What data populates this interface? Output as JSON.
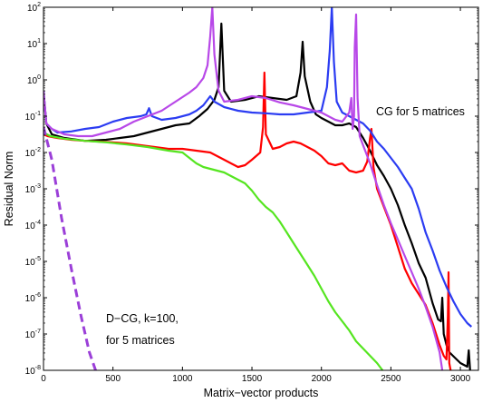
{
  "chart_data": {
    "type": "line",
    "xlabel": "Matrix−vector products",
    "ylabel": "Residual Norm",
    "xlim": [
      0,
      3130
    ],
    "ylim_log10": [
      -8,
      2
    ],
    "log_y": true,
    "grid": false,
    "x_ticks": [
      {
        "value": 0,
        "label": "0"
      },
      {
        "value": 500,
        "label": "500"
      },
      {
        "value": 1000,
        "label": "1000"
      },
      {
        "value": 1500,
        "label": "1500"
      },
      {
        "value": 2000,
        "label": "2000"
      },
      {
        "value": 2500,
        "label": "2500"
      },
      {
        "value": 3000,
        "label": "3000"
      }
    ],
    "y_ticks": [
      {
        "exp": 2,
        "base": "10",
        "sup": "2"
      },
      {
        "exp": 1,
        "base": "10",
        "sup": "1"
      },
      {
        "exp": 0,
        "base": "10",
        "sup": "0"
      },
      {
        "exp": -1,
        "base": "10",
        "sup": "-1"
      },
      {
        "exp": -2,
        "base": "10",
        "sup": "-2"
      },
      {
        "exp": -3,
        "base": "10",
        "sup": "-3"
      },
      {
        "exp": -4,
        "base": "10",
        "sup": "-4"
      },
      {
        "exp": -5,
        "base": "10",
        "sup": "-5"
      },
      {
        "exp": -6,
        "base": "10",
        "sup": "-6"
      },
      {
        "exp": -7,
        "base": "10",
        "sup": "-7"
      },
      {
        "exp": -8,
        "base": "10",
        "sup": "-8"
      }
    ],
    "annotations": [
      {
        "id": "cg",
        "text": "CG for 5 matrices"
      },
      {
        "id": "dcg1",
        "text": "D−CG, k=100,"
      },
      {
        "id": "dcg2",
        "text": "for 5 matrices"
      }
    ],
    "series": [
      {
        "color": "#000000",
        "dashed": false,
        "points": [
          [
            0,
            -0.3
          ],
          [
            20,
            -1.2
          ],
          [
            60,
            -1.5
          ],
          [
            150,
            -1.6
          ],
          [
            300,
            -1.68
          ],
          [
            450,
            -1.65
          ],
          [
            550,
            -1.6
          ],
          [
            650,
            -1.55
          ],
          [
            750,
            -1.45
          ],
          [
            850,
            -1.35
          ],
          [
            950,
            -1.25
          ],
          [
            1050,
            -1.2
          ],
          [
            1120,
            -1.0
          ],
          [
            1180,
            -0.8
          ],
          [
            1230,
            -0.55
          ],
          [
            1260,
            -0.2
          ],
          [
            1280,
            1.55
          ],
          [
            1300,
            -0.3
          ],
          [
            1350,
            -0.6
          ],
          [
            1450,
            -0.55
          ],
          [
            1550,
            -0.45
          ],
          [
            1650,
            -0.5
          ],
          [
            1750,
            -0.55
          ],
          [
            1820,
            -0.45
          ],
          [
            1850,
            0.2
          ],
          [
            1865,
            1.05
          ],
          [
            1880,
            0.1
          ],
          [
            1920,
            -0.6
          ],
          [
            1960,
            -0.95
          ],
          [
            2000,
            -1.05
          ],
          [
            2050,
            -1.15
          ],
          [
            2100,
            -1.25
          ],
          [
            2150,
            -1.25
          ],
          [
            2200,
            -1.2
          ],
          [
            2250,
            -1.3
          ],
          [
            2300,
            -1.6
          ],
          [
            2350,
            -1.95
          ],
          [
            2400,
            -2.35
          ],
          [
            2450,
            -2.65
          ],
          [
            2500,
            -3.0
          ],
          [
            2550,
            -3.45
          ],
          [
            2600,
            -4.0
          ],
          [
            2650,
            -4.5
          ],
          [
            2700,
            -5.05
          ],
          [
            2750,
            -5.45
          ],
          [
            2800,
            -6.15
          ],
          [
            2840,
            -6.6
          ],
          [
            2860,
            -6.65
          ],
          [
            2870,
            -6.0
          ],
          [
            2880,
            -7.0
          ],
          [
            2900,
            -7.3
          ],
          [
            2920,
            -7.5
          ],
          [
            2960,
            -7.65
          ],
          [
            3000,
            -7.8
          ],
          [
            3050,
            -7.9
          ],
          [
            3060,
            -7.45
          ],
          [
            3070,
            -8.0
          ]
        ]
      },
      {
        "color": "#ff0000",
        "dashed": false,
        "points": [
          [
            0,
            -1.5
          ],
          [
            30,
            -1.55
          ],
          [
            100,
            -1.6
          ],
          [
            200,
            -1.65
          ],
          [
            300,
            -1.68
          ],
          [
            400,
            -1.7
          ],
          [
            500,
            -1.72
          ],
          [
            600,
            -1.75
          ],
          [
            700,
            -1.8
          ],
          [
            800,
            -1.85
          ],
          [
            900,
            -1.9
          ],
          [
            1000,
            -1.9
          ],
          [
            1100,
            -1.95
          ],
          [
            1200,
            -2.0
          ],
          [
            1300,
            -2.2
          ],
          [
            1400,
            -2.4
          ],
          [
            1450,
            -2.35
          ],
          [
            1500,
            -2.2
          ],
          [
            1560,
            -2.0
          ],
          [
            1580,
            -1.3
          ],
          [
            1590,
            0.2
          ],
          [
            1600,
            -1.5
          ],
          [
            1650,
            -1.9
          ],
          [
            1700,
            -1.85
          ],
          [
            1750,
            -1.75
          ],
          [
            1800,
            -1.7
          ],
          [
            1850,
            -1.75
          ],
          [
            1900,
            -1.85
          ],
          [
            1950,
            -1.95
          ],
          [
            2000,
            -2.1
          ],
          [
            2050,
            -2.3
          ],
          [
            2100,
            -2.35
          ],
          [
            2150,
            -2.3
          ],
          [
            2200,
            -2.5
          ],
          [
            2250,
            -2.55
          ],
          [
            2300,
            -2.5
          ],
          [
            2330,
            -2.25
          ],
          [
            2350,
            -1.6
          ],
          [
            2360,
            -1.35
          ],
          [
            2375,
            -2.4
          ],
          [
            2400,
            -3.0
          ],
          [
            2450,
            -3.5
          ],
          [
            2500,
            -4.0
          ],
          [
            2550,
            -4.6
          ],
          [
            2600,
            -5.2
          ],
          [
            2650,
            -5.6
          ],
          [
            2700,
            -5.9
          ],
          [
            2750,
            -6.2
          ],
          [
            2800,
            -6.7
          ],
          [
            2850,
            -7.3
          ],
          [
            2880,
            -7.6
          ],
          [
            2900,
            -7.7
          ],
          [
            2910,
            -6.5
          ],
          [
            2915,
            -5.3
          ],
          [
            2920,
            -7.8
          ],
          [
            2930,
            -8.0
          ]
        ]
      },
      {
        "color": "#2b3cf2",
        "dashed": false,
        "points": [
          [
            0,
            -0.3
          ],
          [
            20,
            -1.2
          ],
          [
            60,
            -1.35
          ],
          [
            100,
            -1.45
          ],
          [
            200,
            -1.42
          ],
          [
            300,
            -1.35
          ],
          [
            400,
            -1.3
          ],
          [
            500,
            -1.15
          ],
          [
            600,
            -1.05
          ],
          [
            700,
            -1.0
          ],
          [
            740,
            -0.95
          ],
          [
            760,
            -0.78
          ],
          [
            780,
            -1.0
          ],
          [
            850,
            -1.1
          ],
          [
            950,
            -1.05
          ],
          [
            1050,
            -0.95
          ],
          [
            1100,
            -0.85
          ],
          [
            1150,
            -0.7
          ],
          [
            1180,
            -0.55
          ],
          [
            1200,
            -0.45
          ],
          [
            1230,
            -0.6
          ],
          [
            1300,
            -0.75
          ],
          [
            1400,
            -0.85
          ],
          [
            1500,
            -0.9
          ],
          [
            1600,
            -0.92
          ],
          [
            1700,
            -0.95
          ],
          [
            1800,
            -0.95
          ],
          [
            1900,
            -0.9
          ],
          [
            2000,
            -0.85
          ],
          [
            2040,
            -0.2
          ],
          [
            2060,
            0.8
          ],
          [
            2075,
            2.0
          ],
          [
            2090,
            0.5
          ],
          [
            2110,
            -0.6
          ],
          [
            2150,
            -0.9
          ],
          [
            2200,
            -1.0
          ],
          [
            2300,
            -1.2
          ],
          [
            2350,
            -1.4
          ],
          [
            2400,
            -1.7
          ],
          [
            2450,
            -1.9
          ],
          [
            2500,
            -2.15
          ],
          [
            2550,
            -2.4
          ],
          [
            2600,
            -2.7
          ],
          [
            2650,
            -3.0
          ],
          [
            2700,
            -3.55
          ],
          [
            2750,
            -4.2
          ],
          [
            2800,
            -4.7
          ],
          [
            2850,
            -5.25
          ],
          [
            2900,
            -5.7
          ],
          [
            2950,
            -6.1
          ],
          [
            3000,
            -6.45
          ],
          [
            3050,
            -6.7
          ],
          [
            3080,
            -6.8
          ]
        ]
      },
      {
        "color": "#b848e8",
        "dashed": false,
        "points": [
          [
            0,
            -0.3
          ],
          [
            20,
            -1.2
          ],
          [
            60,
            -1.35
          ],
          [
            150,
            -1.5
          ],
          [
            250,
            -1.55
          ],
          [
            350,
            -1.55
          ],
          [
            450,
            -1.45
          ],
          [
            550,
            -1.35
          ],
          [
            650,
            -1.15
          ],
          [
            750,
            -1.0
          ],
          [
            850,
            -0.85
          ],
          [
            950,
            -0.6
          ],
          [
            1050,
            -0.35
          ],
          [
            1100,
            -0.2
          ],
          [
            1150,
            0.05
          ],
          [
            1180,
            0.4
          ],
          [
            1200,
            1.2
          ],
          [
            1215,
            2.0
          ],
          [
            1230,
            0.7
          ],
          [
            1260,
            -0.3
          ],
          [
            1300,
            -0.6
          ],
          [
            1400,
            -0.55
          ],
          [
            1500,
            -0.45
          ],
          [
            1600,
            -0.5
          ],
          [
            1700,
            -0.62
          ],
          [
            1800,
            -0.7
          ],
          [
            1900,
            -0.8
          ],
          [
            2000,
            -0.9
          ],
          [
            2100,
            -1.1
          ],
          [
            2150,
            -1.15
          ],
          [
            2200,
            -0.9
          ],
          [
            2215,
            -0.5
          ],
          [
            2225,
            -1.35
          ],
          [
            2235,
            -1.0
          ],
          [
            2240,
            0.9
          ],
          [
            2250,
            1.8
          ],
          [
            2260,
            -0.5
          ],
          [
            2275,
            -1.55
          ],
          [
            2300,
            -1.8
          ],
          [
            2350,
            -2.3
          ],
          [
            2400,
            -2.9
          ],
          [
            2450,
            -3.45
          ],
          [
            2500,
            -3.95
          ],
          [
            2550,
            -4.4
          ],
          [
            2600,
            -4.85
          ],
          [
            2650,
            -5.3
          ],
          [
            2700,
            -5.75
          ],
          [
            2750,
            -6.25
          ],
          [
            2800,
            -6.8
          ],
          [
            2850,
            -7.5
          ],
          [
            2870,
            -8.0
          ]
        ]
      },
      {
        "color": "#55e520",
        "dashed": false,
        "points": [
          [
            0,
            -1.45
          ],
          [
            50,
            -1.55
          ],
          [
            150,
            -1.62
          ],
          [
            300,
            -1.68
          ],
          [
            450,
            -1.72
          ],
          [
            600,
            -1.78
          ],
          [
            750,
            -1.85
          ],
          [
            900,
            -1.95
          ],
          [
            1000,
            -2.0
          ],
          [
            1050,
            -2.15
          ],
          [
            1100,
            -2.3
          ],
          [
            1150,
            -2.4
          ],
          [
            1200,
            -2.45
          ],
          [
            1250,
            -2.5
          ],
          [
            1300,
            -2.55
          ],
          [
            1350,
            -2.65
          ],
          [
            1400,
            -2.75
          ],
          [
            1450,
            -2.85
          ],
          [
            1500,
            -3.05
          ],
          [
            1550,
            -3.3
          ],
          [
            1600,
            -3.5
          ],
          [
            1650,
            -3.65
          ],
          [
            1700,
            -3.9
          ],
          [
            1750,
            -4.2
          ],
          [
            1800,
            -4.5
          ],
          [
            1850,
            -4.8
          ],
          [
            1900,
            -5.1
          ],
          [
            1950,
            -5.4
          ],
          [
            2000,
            -5.75
          ],
          [
            2050,
            -6.1
          ],
          [
            2100,
            -6.4
          ],
          [
            2150,
            -6.65
          ],
          [
            2200,
            -6.9
          ],
          [
            2250,
            -7.2
          ],
          [
            2300,
            -7.4
          ],
          [
            2350,
            -7.6
          ],
          [
            2400,
            -7.8
          ],
          [
            2440,
            -8.0
          ]
        ]
      },
      {
        "color": "#9b3fd8",
        "dashed": true,
        "points": [
          [
            0,
            -1.3
          ],
          [
            60,
            -2.2
          ],
          [
            130,
            -3.8
          ],
          [
            200,
            -5.2
          ],
          [
            270,
            -6.5
          ],
          [
            330,
            -7.5
          ],
          [
            375,
            -8.0
          ]
        ]
      }
    ]
  }
}
